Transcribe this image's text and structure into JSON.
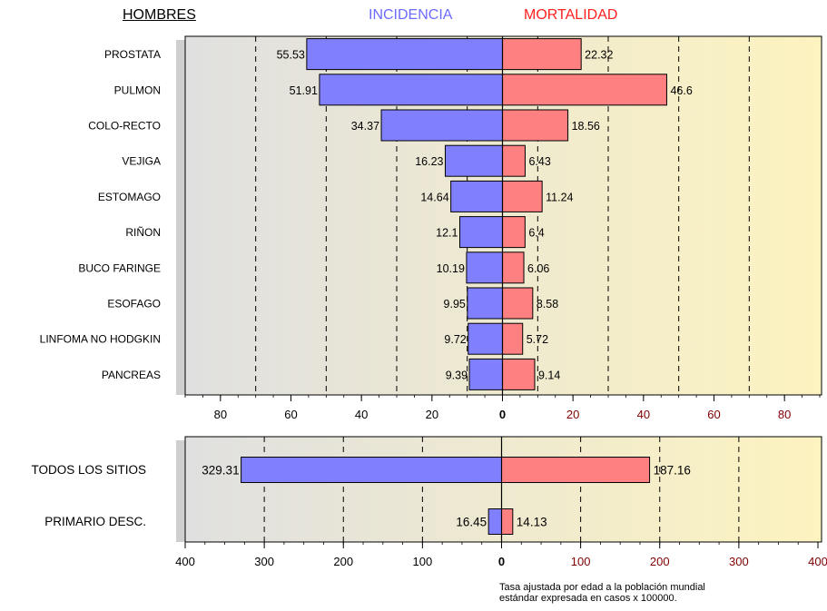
{
  "header": {
    "group": "HOMBRES",
    "left_series": "INCIDENCIA",
    "right_series": "MORTALIDAD"
  },
  "footnote": {
    "line1": "Tasa ajustada por edad a la población mundial",
    "line2": "estándar expresada en casos x 100000."
  },
  "colors": {
    "incidence_fill": "#8080ff",
    "mortality_fill": "#ff8080",
    "bg_left": "#e0e0e0",
    "bg_right": "#fdf3c0",
    "tick_left": "#000000",
    "tick_right": "#800000"
  },
  "chart_data": [
    {
      "type": "bar",
      "orientation": "horizontal-butterfly",
      "categories": [
        "PROSTATA",
        "PULMON",
        "COLO-RECTO",
        "VEJIGA",
        "ESTOMAGO",
        "RIÑON",
        "BUCO FARINGE",
        "ESOFAGO",
        "LINFOMA NO HODGKIN",
        "PANCREAS"
      ],
      "series": [
        {
          "name": "INCIDENCIA",
          "side": "left",
          "values": [
            55.53,
            51.91,
            34.37,
            16.23,
            14.64,
            12.1,
            10.19,
            9.95,
            9.72,
            9.39
          ]
        },
        {
          "name": "MORTALIDAD",
          "side": "right",
          "values": [
            22.32,
            46.6,
            18.56,
            6.43,
            11.24,
            6.4,
            6.06,
            8.58,
            5.72,
            9.14
          ]
        }
      ],
      "xlim": [
        -90,
        90
      ],
      "tick_labels": [
        "80",
        "60",
        "40",
        "20",
        "0",
        "20",
        "40",
        "60",
        "80"
      ],
      "grid": "vertical dashed every 20"
    },
    {
      "type": "bar",
      "orientation": "horizontal-butterfly",
      "categories": [
        "TODOS LOS SITIOS",
        "PRIMARIO DESC."
      ],
      "series": [
        {
          "name": "INCIDENCIA",
          "side": "left",
          "values": [
            329.31,
            16.45
          ]
        },
        {
          "name": "MORTALIDAD",
          "side": "right",
          "values": [
            187.16,
            14.13
          ]
        }
      ],
      "xlim": [
        -400,
        400
      ],
      "tick_labels": [
        "400",
        "300",
        "200",
        "100",
        "0",
        "100",
        "200",
        "300",
        "400"
      ],
      "grid": "vertical dashed every 100"
    }
  ]
}
